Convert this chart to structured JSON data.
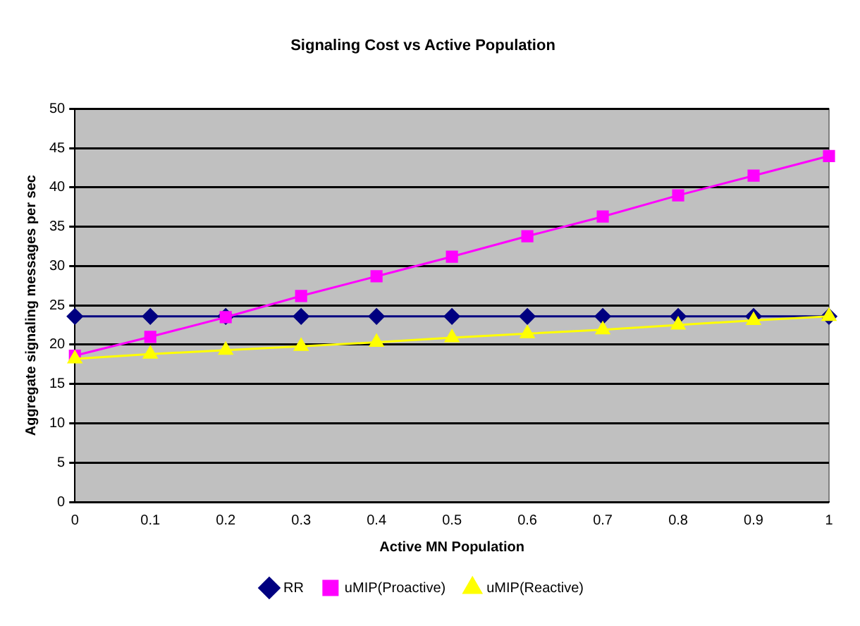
{
  "chart_data": {
    "type": "line",
    "title": "Signaling Cost vs Active Population",
    "xlabel": "Active MN Population",
    "ylabel": "Aggregate signaling messages per sec",
    "categories": [
      "0",
      "0.1",
      "0.2",
      "0.3",
      "0.4",
      "0.5",
      "0.6",
      "0.7",
      "0.8",
      "0.9",
      "1"
    ],
    "series": [
      {
        "name": "RR",
        "color": "#000080",
        "marker": "diamond",
        "values": [
          23.6,
          23.6,
          23.6,
          23.6,
          23.6,
          23.6,
          23.6,
          23.6,
          23.6,
          23.6,
          23.6
        ]
      },
      {
        "name": "uMIP(Proactive)",
        "color": "#ff00ff",
        "marker": "square",
        "values": [
          18.6,
          21,
          23.5,
          26.2,
          28.7,
          31.2,
          33.8,
          36.3,
          39,
          41.5,
          44
        ]
      },
      {
        "name": "uMIP(Reactive)",
        "color": "#ffff00",
        "marker": "triangle",
        "values": [
          18.2,
          18.8,
          19.3,
          19.8,
          20.3,
          20.9,
          21.4,
          21.9,
          22.5,
          23.1,
          23.6
        ]
      }
    ],
    "ylim": [
      0,
      50
    ],
    "yticks": [
      0,
      5,
      10,
      15,
      20,
      25,
      30,
      35,
      40,
      45,
      50
    ],
    "grid": "y",
    "legend": "bottom"
  }
}
